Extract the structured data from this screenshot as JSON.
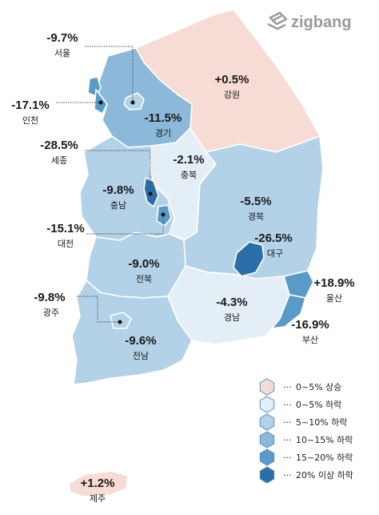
{
  "brand": {
    "name": "zigbang",
    "icon": "zigbang-logo-icon"
  },
  "colors": {
    "rise_0_5": "#f6dcd4",
    "fall_0_5": "#e4eef6",
    "fall_5_10": "#b3d1e7",
    "fall_10_15": "#8cb9da",
    "fall_15_20": "#5a9ac9",
    "fall_20_plus": "#2a6fa8"
  },
  "regions": {
    "seoul": {
      "name": "서울",
      "change": "-9.7%"
    },
    "incheon": {
      "name": "인천",
      "change": "-17.1%"
    },
    "gyeonggi": {
      "name": "경기",
      "change": "-11.5%"
    },
    "gangwon": {
      "name": "강원",
      "change": "+0.5%"
    },
    "sejong": {
      "name": "세종",
      "change": "-28.5%"
    },
    "chungbuk": {
      "name": "충북",
      "change": "-2.1%"
    },
    "chungnam": {
      "name": "충남",
      "change": "-9.8%"
    },
    "daejeon": {
      "name": "대전",
      "change": "-15.1%"
    },
    "gyeongbuk": {
      "name": "경북",
      "change": "-5.5%"
    },
    "daegu": {
      "name": "대구",
      "change": "-26.5%"
    },
    "jeonbuk": {
      "name": "전북",
      "change": "-9.0%"
    },
    "ulsan": {
      "name": "울산",
      "change": "+18.9%"
    },
    "gwangju": {
      "name": "광주",
      "change": "-9.8%"
    },
    "gyeongnam": {
      "name": "경남",
      "change": "-4.3%"
    },
    "busan": {
      "name": "부산",
      "change": "-16.9%"
    },
    "jeonnam": {
      "name": "전남",
      "change": "-9.6%"
    },
    "jeju": {
      "name": "제주",
      "change": "+1.2%"
    }
  },
  "legend": [
    {
      "label": "0~5% 상승",
      "color": "#f6dcd4"
    },
    {
      "label": "0~5% 하락",
      "color": "#e4eef6"
    },
    {
      "label": "5~10% 하락",
      "color": "#b3d1e7"
    },
    {
      "label": "10~15% 하락",
      "color": "#8cb9da"
    },
    {
      "label": "15~20% 하락",
      "color": "#5a9ac9"
    },
    {
      "label": "20% 이상 하락",
      "color": "#2a6fa8"
    }
  ]
}
